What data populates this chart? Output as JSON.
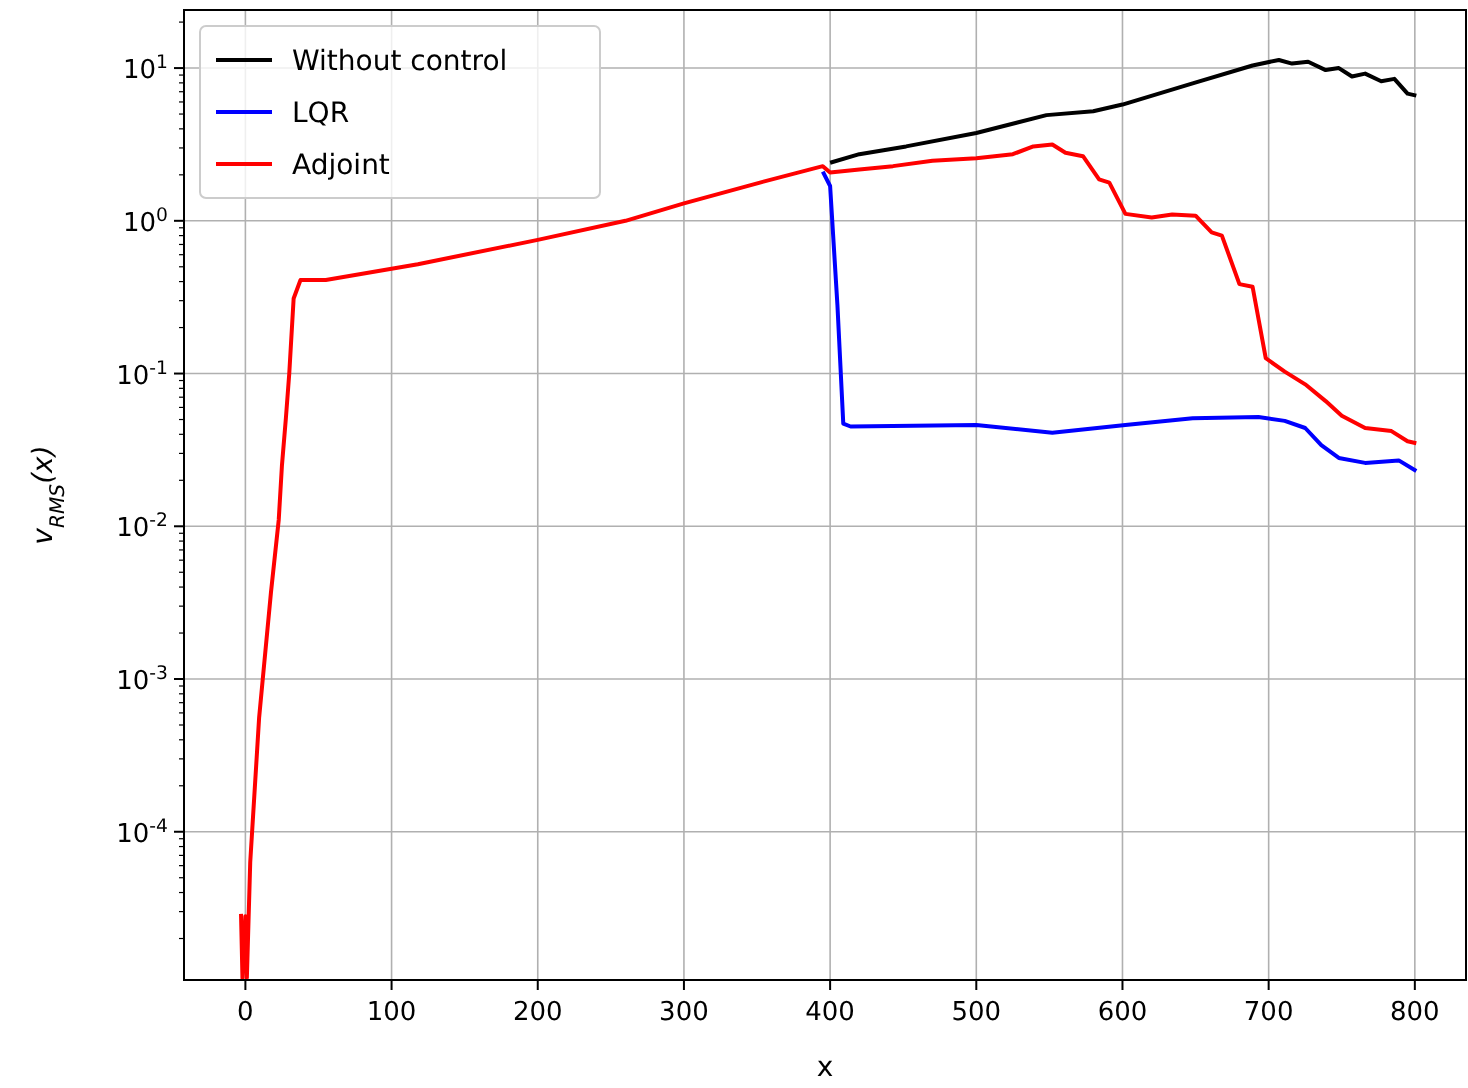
{
  "chart_data": {
    "type": "line",
    "xlabel": "x",
    "ylabel": "v$_{RMS}$(x)",
    "log": "y",
    "grid": true,
    "legend": "top left",
    "line_style": "solid",
    "marker": "none",
    "xlim": [
      -42,
      835
    ],
    "xticks": [
      0,
      100,
      200,
      300,
      400,
      500,
      600,
      700,
      800
    ],
    "ylim": [
      1.07e-05,
      24
    ],
    "yticks": [
      {
        "value": 0.0001,
        "label": "10$^{-4}$"
      },
      {
        "value": 0.001,
        "label": "10$^{-3}$"
      },
      {
        "value": 0.01,
        "label": "10$^{-2}$"
      },
      {
        "value": 0.1,
        "label": "10$^{-1}$"
      },
      {
        "value": 1,
        "label": "10$^{0}$"
      },
      {
        "value": 10,
        "label": "10$^{1}$"
      }
    ],
    "series": [
      {
        "name": "Without control",
        "color": "#000000",
        "x": [
          400,
          420,
          452,
          500,
          548,
          580,
          600,
          648,
          689,
          707,
          716,
          727,
          739,
          748,
          757,
          766,
          777,
          786,
          795,
          801
        ],
        "values": [
          2.4,
          2.73,
          3.07,
          3.76,
          4.92,
          5.22,
          5.77,
          7.94,
          10.4,
          11.3,
          10.7,
          11,
          9.7,
          10,
          8.8,
          9.2,
          8.2,
          8.5,
          6.8,
          6.6
        ]
      },
      {
        "name": "LQR",
        "color": "#0000ff",
        "x": [
          395,
          400,
          405,
          409,
          414,
          500,
          552,
          602,
          648,
          693,
          711,
          725,
          736,
          748,
          766,
          789,
          801
        ],
        "values": [
          2.1,
          1.69,
          0.28,
          0.047,
          0.045,
          0.046,
          0.041,
          0.046,
          0.051,
          0.052,
          0.049,
          0.044,
          0.034,
          0.028,
          0.026,
          0.027,
          0.023
        ]
      },
      {
        "name": "Adjoint",
        "color": "#ff0000",
        "x": [
          -3,
          -2,
          0,
          1,
          3.3,
          9.4,
          13,
          17.5,
          22.8,
          25,
          27.7,
          30,
          33,
          37.7,
          55,
          118,
          200,
          260,
          300,
          352,
          395,
          400,
          420,
          443,
          470,
          500,
          525,
          539,
          552,
          561,
          573,
          584,
          591,
          602,
          620,
          634,
          650,
          661,
          668,
          680,
          689,
          698,
          711,
          725,
          739,
          750,
          766,
          784,
          795,
          801
        ],
        "values": [
          2.9e-05,
          1.1e-05,
          2.8e-05,
          1.1e-05,
          6.3e-05,
          0.00056,
          0.0013,
          0.0037,
          0.011,
          0.025,
          0.051,
          0.1,
          0.31,
          0.41,
          0.41,
          0.52,
          0.75,
          1.0,
          1.3,
          1.78,
          2.28,
          2.07,
          2.17,
          2.28,
          2.47,
          2.57,
          2.73,
          3.07,
          3.16,
          2.79,
          2.65,
          1.87,
          1.78,
          1.11,
          1.05,
          1.1,
          1.08,
          0.84,
          0.8,
          0.385,
          0.37,
          0.126,
          0.103,
          0.085,
          0.066,
          0.053,
          0.044,
          0.042,
          0.036,
          0.035
        ]
      }
    ]
  }
}
